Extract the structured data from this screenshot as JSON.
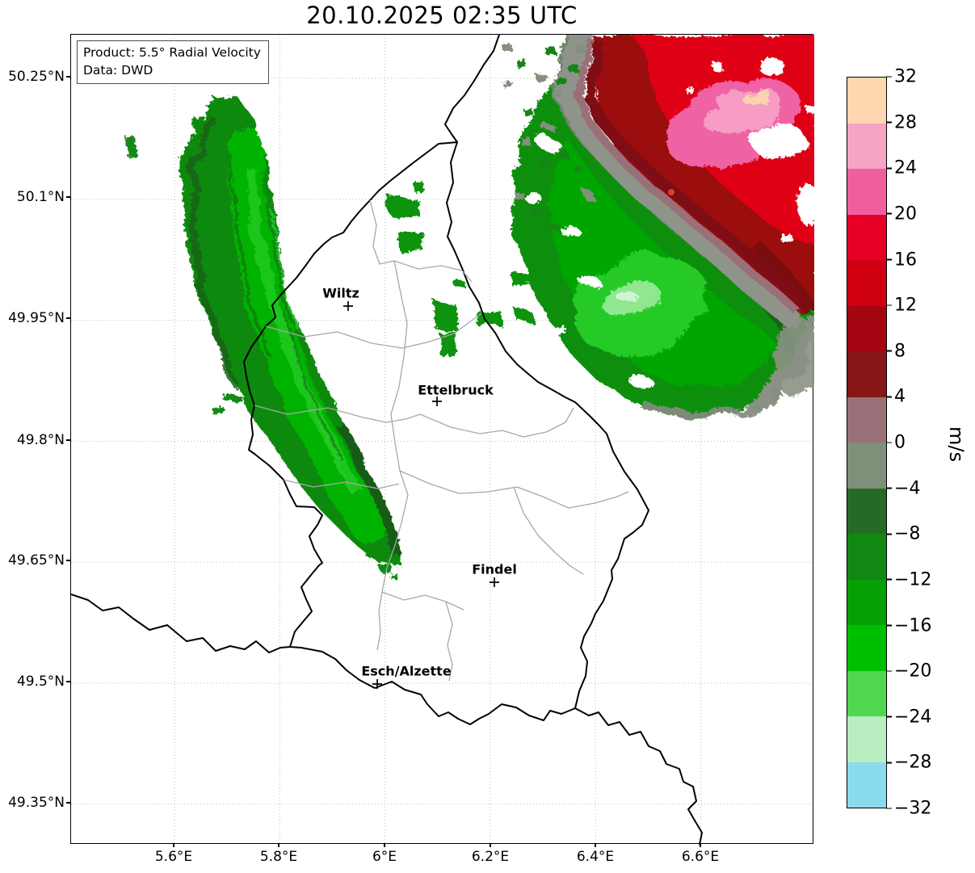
{
  "title": "20.10.2025 02:35 UTC",
  "info_box": {
    "product": "Product: 5.5° Radial Velocity",
    "data_source": "Data: DWD"
  },
  "map": {
    "lat_ticks": [
      "50.25°N",
      "50.1°N",
      "49.95°N",
      "49.8°N",
      "49.65°N",
      "49.5°N",
      "49.35°N"
    ],
    "lon_ticks": [
      "5.6°E",
      "5.8°E",
      "6°E",
      "6.2°E",
      "6.4°E",
      "6.6°E"
    ],
    "cities": [
      {
        "name": "Wiltz"
      },
      {
        "name": "Ettelbruck"
      },
      {
        "name": "Findel"
      },
      {
        "name": "Esch/Alzette"
      }
    ]
  },
  "colorbar": {
    "unit_label": "m/s",
    "tick_values": [
      "32",
      "28",
      "24",
      "20",
      "16",
      "12",
      "8",
      "4",
      "0",
      "−4",
      "−8",
      "−12",
      "−16",
      "−20",
      "−24",
      "−28",
      "−32"
    ],
    "segment_colors_top_to_bottom": [
      "#fcd7b0",
      "#f7a3c3",
      "#ef5f9e",
      "#e60026",
      "#cf0012",
      "#a30511",
      "#871617",
      "#9b7179",
      "#7e8f7a",
      "#256b25",
      "#128712",
      "#05a005",
      "#00bf00",
      "#4fd74f",
      "#b8eec0",
      "#8adcec"
    ]
  }
}
